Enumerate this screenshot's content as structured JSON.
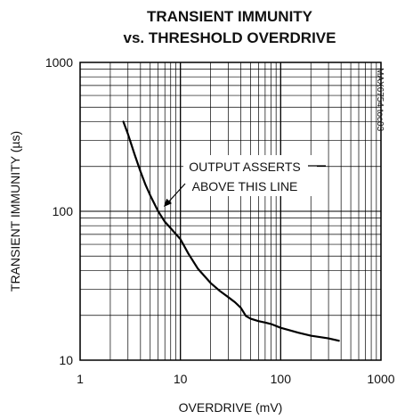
{
  "chart_data": {
    "type": "line",
    "title_line1": "TRANSIENT IMMUNITY",
    "title_line2": "vs. THRESHOLD OVERDRIVE",
    "xlabel": "OVERDRIVE (mV)",
    "ylabel": "TRANSIENT IMMUNITY (µs)",
    "x_scale": "log",
    "y_scale": "log",
    "xlim": [
      1,
      1000
    ],
    "ylim": [
      10,
      1000
    ],
    "x_ticks": [
      "1",
      "10",
      "100",
      "1000"
    ],
    "y_ticks": [
      "10",
      "100",
      "1000"
    ],
    "grid": true,
    "figure_code": "MAX6754 toc03",
    "annotation_line1": "OUTPUT ASSERTS",
    "annotation_line2": "ABOVE THIS LINE",
    "line_color": "#000000",
    "series": [
      {
        "x": [
          2.7,
          3.0,
          3.5,
          4.0,
          4.5,
          5.0,
          6.0,
          7.0,
          8.0,
          10,
          12,
          15,
          20,
          25,
          30,
          35,
          40,
          45,
          50,
          60,
          70,
          80,
          100,
          150,
          200,
          300,
          380
        ],
        "y": [
          400,
          330,
          240,
          185,
          150,
          128,
          100,
          85,
          77,
          65,
          52,
          41,
          33,
          29,
          26.5,
          24.5,
          22.5,
          19.8,
          19.0,
          18.3,
          17.9,
          17.5,
          16.5,
          15.3,
          14.6,
          14.0,
          13.5
        ]
      }
    ]
  }
}
